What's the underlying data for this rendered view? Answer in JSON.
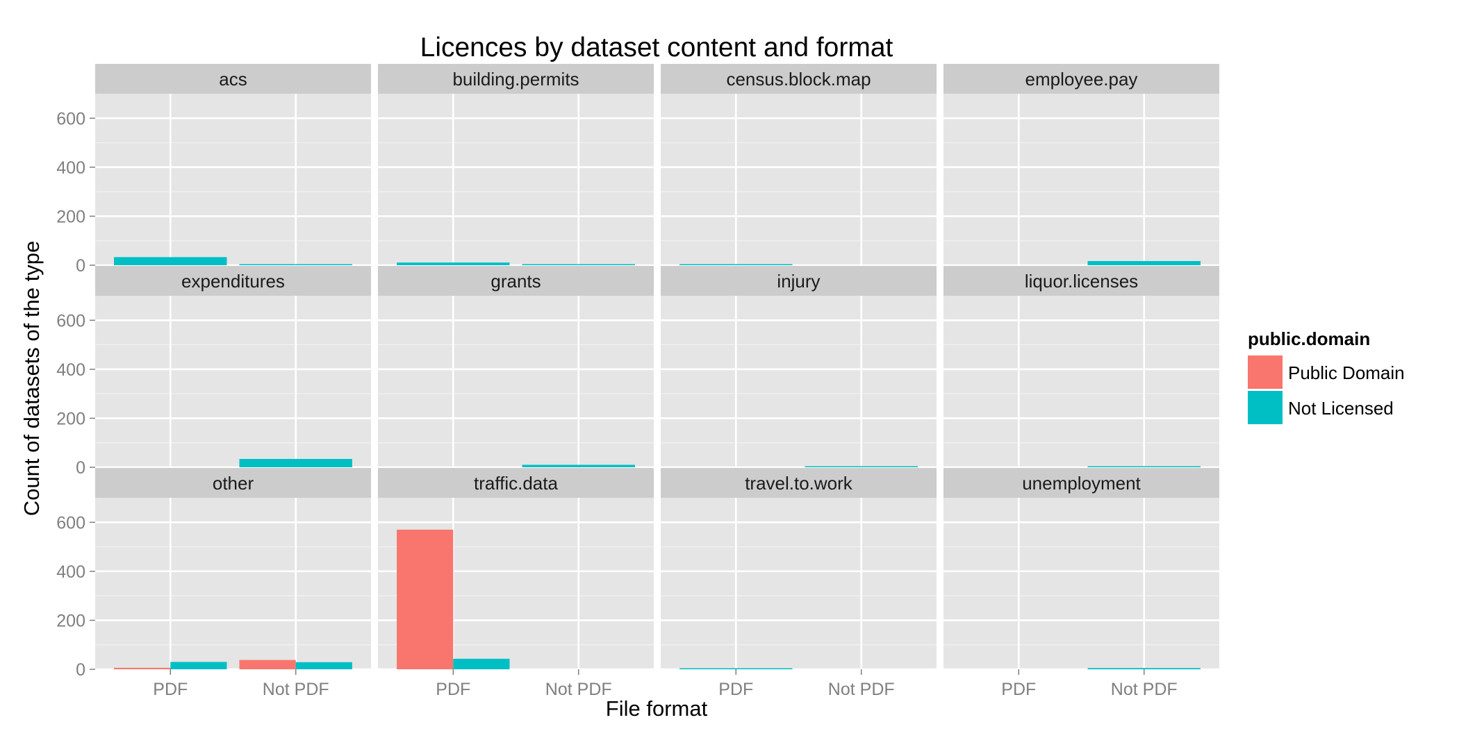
{
  "chart_data": {
    "type": "bar",
    "title": "Licences by dataset content and format",
    "xlabel": "File format",
    "ylabel": "Count of datasets of the type",
    "categories": [
      "PDF",
      "Not PDF"
    ],
    "ylim": [
      0,
      700
    ],
    "yticks": [
      0,
      200,
      400,
      600
    ],
    "grid": true,
    "legend": {
      "title": "public.domain",
      "position": "right",
      "entries": [
        {
          "name": "Public Domain",
          "color": "#F8766D"
        },
        {
          "name": "Not Licensed",
          "color": "#00BFC4"
        }
      ]
    },
    "facets": [
      {
        "name": "acs",
        "values": {
          "PDF": {
            "Public Domain": null,
            "Not Licensed": 33
          },
          "Not PDF": {
            "Public Domain": null,
            "Not Licensed": 2
          }
        }
      },
      {
        "name": "building.permits",
        "values": {
          "PDF": {
            "Public Domain": null,
            "Not Licensed": 11
          },
          "Not PDF": {
            "Public Domain": null,
            "Not Licensed": 2
          }
        }
      },
      {
        "name": "census.block.map",
        "values": {
          "PDF": {
            "Public Domain": null,
            "Not Licensed": 2
          },
          "Not PDF": {
            "Public Domain": null,
            "Not Licensed": null
          }
        }
      },
      {
        "name": "employee.pay",
        "values": {
          "PDF": {
            "Public Domain": null,
            "Not Licensed": null
          },
          "Not PDF": {
            "Public Domain": null,
            "Not Licensed": 17
          }
        }
      },
      {
        "name": "expenditures",
        "values": {
          "PDF": {
            "Public Domain": null,
            "Not Licensed": null
          },
          "Not PDF": {
            "Public Domain": null,
            "Not Licensed": 34
          }
        }
      },
      {
        "name": "grants",
        "values": {
          "PDF": {
            "Public Domain": null,
            "Not Licensed": null
          },
          "Not PDF": {
            "Public Domain": null,
            "Not Licensed": 10
          }
        }
      },
      {
        "name": "injury",
        "values": {
          "PDF": {
            "Public Domain": null,
            "Not Licensed": null
          },
          "Not PDF": {
            "Public Domain": null,
            "Not Licensed": 4
          }
        }
      },
      {
        "name": "liquor.licenses",
        "values": {
          "PDF": {
            "Public Domain": null,
            "Not Licensed": null
          },
          "Not PDF": {
            "Public Domain": null,
            "Not Licensed": 2
          }
        }
      },
      {
        "name": "other",
        "values": {
          "PDF": {
            "Public Domain": 6,
            "Not Licensed": 30
          },
          "Not PDF": {
            "Public Domain": 38,
            "Not Licensed": 29
          }
        }
      },
      {
        "name": "traffic.data",
        "values": {
          "PDF": {
            "Public Domain": 570,
            "Not Licensed": 43
          },
          "Not PDF": {
            "Public Domain": null,
            "Not Licensed": null
          }
        }
      },
      {
        "name": "travel.to.work",
        "values": {
          "PDF": {
            "Public Domain": null,
            "Not Licensed": 1
          },
          "Not PDF": {
            "Public Domain": null,
            "Not Licensed": null
          }
        }
      },
      {
        "name": "unemployment",
        "values": {
          "PDF": {
            "Public Domain": null,
            "Not Licensed": null
          },
          "Not PDF": {
            "Public Domain": null,
            "Not Licensed": 5
          }
        }
      }
    ]
  }
}
